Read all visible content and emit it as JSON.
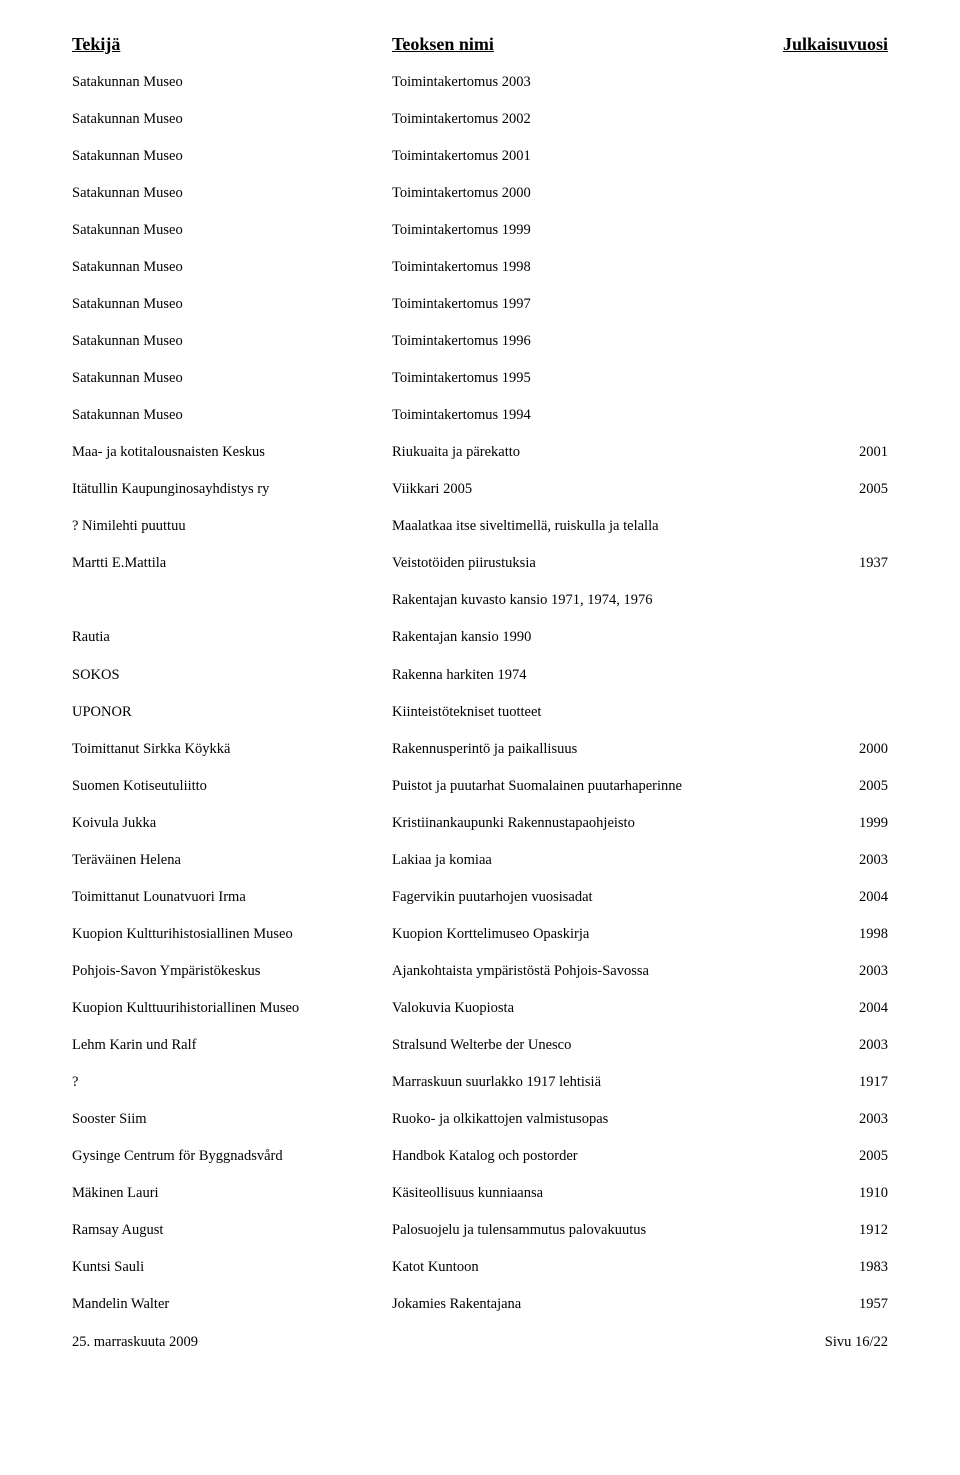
{
  "header": {
    "author": "Tekijä",
    "title": "Teoksen nimi",
    "year": "Julkaisuvuosi"
  },
  "rows": [
    {
      "author": "Satakunnan Museo",
      "title": "Toimintakertomus 2003",
      "year": ""
    },
    {
      "author": "Satakunnan Museo",
      "title": "Toimintakertomus 2002",
      "year": ""
    },
    {
      "author": "Satakunnan Museo",
      "title": "Toimintakertomus 2001",
      "year": ""
    },
    {
      "author": "Satakunnan Museo",
      "title": "Toimintakertomus 2000",
      "year": ""
    },
    {
      "author": "Satakunnan Museo",
      "title": "Toimintakertomus 1999",
      "year": ""
    },
    {
      "author": "Satakunnan Museo",
      "title": "Toimintakertomus 1998",
      "year": ""
    },
    {
      "author": "Satakunnan Museo",
      "title": "Toimintakertomus 1997",
      "year": ""
    },
    {
      "author": "Satakunnan Museo",
      "title": "Toimintakertomus 1996",
      "year": ""
    },
    {
      "author": "Satakunnan Museo",
      "title": "Toimintakertomus 1995",
      "year": ""
    },
    {
      "author": "Satakunnan Museo",
      "title": "Toimintakertomus 1994",
      "year": ""
    },
    {
      "author": "Maa- ja kotitalousnaisten Keskus",
      "title": "Riukuaita ja pärekatto",
      "year": "2001"
    },
    {
      "author": "Itätullin Kaupunginosayhdistys ry",
      "title": "Viikkari 2005",
      "year": "2005"
    },
    {
      "author": "? Nimilehti puuttuu",
      "title": "Maalatkaa itse siveltimellä, ruiskulla ja telalla",
      "year": ""
    },
    {
      "author": "Martti E.Mattila",
      "title": "Veistotöiden piirustuksia",
      "year": "1937"
    },
    {
      "author": "",
      "title": "Rakentajan kuvasto kansio 1971, 1974, 1976",
      "year": ""
    },
    {
      "author": "Rautia",
      "title": "Rakentajan kansio 1990",
      "year": ""
    },
    {
      "author": "SOKOS",
      "title": "Rakenna harkiten 1974",
      "year": ""
    },
    {
      "author": "UPONOR",
      "title": "Kiinteistötekniset tuotteet",
      "year": ""
    },
    {
      "author": "Toimittanut Sirkka Köykkä",
      "title": "Rakennusperintö ja paikallisuus",
      "year": "2000"
    },
    {
      "author": "Suomen Kotiseutuliitto",
      "title": "Puistot ja puutarhat Suomalainen puutarhaperinne",
      "year": "2005"
    },
    {
      "author": "Koivula Jukka",
      "title": "Kristiinankaupunki Rakennustapaohjeisto",
      "year": "1999"
    },
    {
      "author": "Teräväinen Helena",
      "title": "Lakiaa ja komiaa",
      "year": "2003"
    },
    {
      "author": "Toimittanut Lounatvuori Irma",
      "title": "Fagervikin puutarhojen vuosisadat",
      "year": "2004"
    },
    {
      "author": "Kuopion Kultturihistosiallinen Museo",
      "title": "Kuopion Korttelimuseo Opaskirja",
      "year": "1998"
    },
    {
      "author": "Pohjois-Savon Ympäristökeskus",
      "title": "Ajankohtaista ympäristöstä Pohjois-Savossa",
      "year": "2003"
    },
    {
      "author": "Kuopion Kulttuurihistoriallinen Museo",
      "title": "Valokuvia Kuopiosta",
      "year": "2004"
    },
    {
      "author": "Lehm Karin und Ralf",
      "title": "Stralsund Welterbe der Unesco",
      "year": "2003"
    },
    {
      "author": "?",
      "title": "Marraskuun suurlakko 1917 lehtisiä",
      "year": "1917"
    },
    {
      "author": "Sooster Siim",
      "title": "Ruoko- ja olkikattojen valmistusopas",
      "year": "2003"
    },
    {
      "author": "Gysinge Centrum för Byggnadsvård",
      "title": "Handbok Katalog och postorder",
      "year": "2005"
    },
    {
      "author": "Mäkinen Lauri",
      "title": "Käsiteollisuus kunniaansa",
      "year": "1910"
    },
    {
      "author": "Ramsay August",
      "title": "Palosuojelu ja tulensammutus palovakuutus",
      "year": "1912"
    },
    {
      "author": "Kuntsi Sauli",
      "title": "Katot Kuntoon",
      "year": "1983"
    },
    {
      "author": "Mandelin Walter",
      "title": "Jokamies Rakentajana",
      "year": "1957"
    }
  ],
  "footer": {
    "date": "25. marraskuuta 2009",
    "page": "Sivu 16/22"
  }
}
